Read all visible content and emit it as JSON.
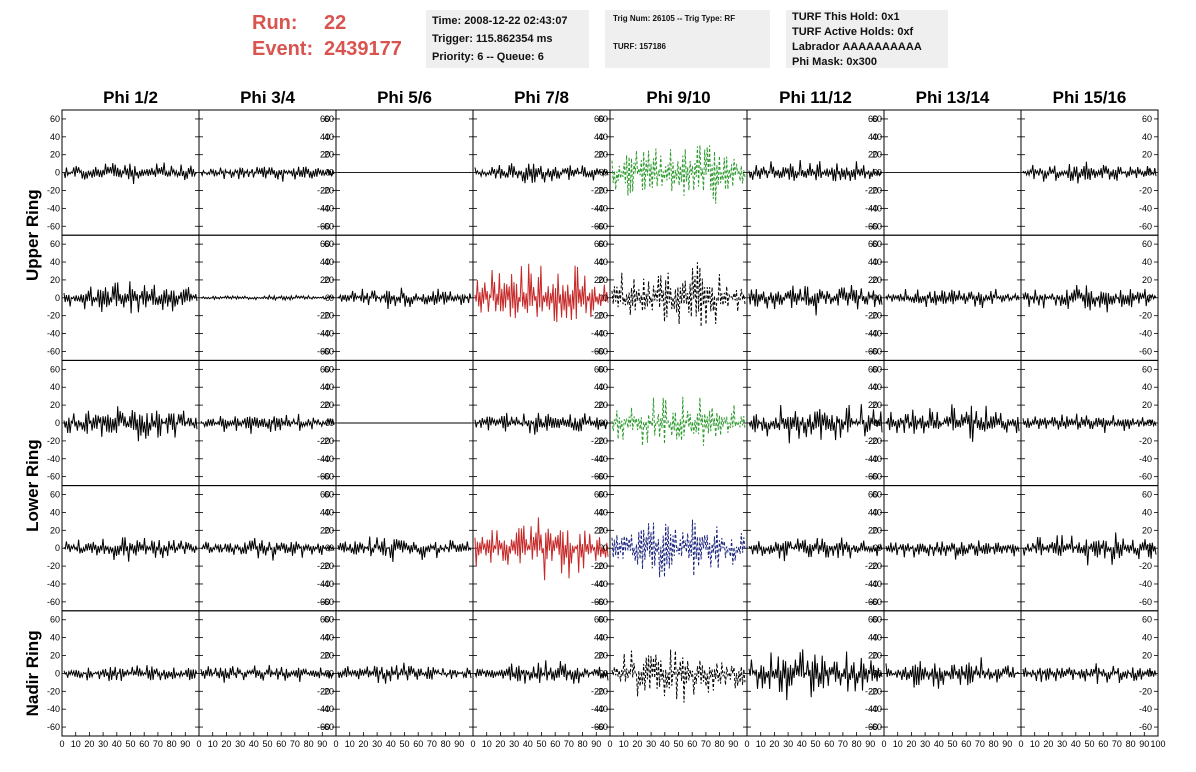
{
  "header": {
    "run_label": "Run:",
    "run_value": "22",
    "event_label": "Event:",
    "event_value": "2439177",
    "time": "Time: 2008-12-22 02:43:07",
    "trigger": "Trigger: 115.862354 ms",
    "priority": "Priority: 6 -- Queue: 6",
    "trig_num": "Trig Num: 26105 -- Trig Type: RF",
    "turf": "TURF: 157186",
    "turf_this_hold": "TURF This Hold: 0x1",
    "turf_active_holds": "TURF Active Holds: 0xf",
    "labrador": "Labrador AAAAAAAAAA",
    "phi_mask": "Phi Mask: 0x300"
  },
  "colors": {
    "header_red": "#d9534f",
    "trace_black": "#000000",
    "trace_green": "#2e9b2e",
    "trace_red": "#c62828",
    "trace_blue": "#1a237e",
    "box_bg": "#efefef"
  },
  "chart_data": {
    "type": "line",
    "columns": [
      "Phi 1/2",
      "Phi 3/4",
      "Phi 5/6",
      "Phi 7/8",
      "Phi 9/10",
      "Phi 11/12",
      "Phi 13/14",
      "Phi 15/16"
    ],
    "row_labels": [
      "Upper Ring",
      "Lower Ring",
      "Nadir Ring"
    ],
    "ylim": [
      -70,
      70
    ],
    "yticks": [
      -60,
      -40,
      -20,
      0,
      20,
      40,
      60
    ],
    "xlim": [
      0,
      100
    ],
    "xticks": [
      0,
      10,
      20,
      30,
      40,
      50,
      60,
      70,
      80,
      90,
      100
    ],
    "xtick_labels_printed": "0 10203040506070809010",
    "panels": [
      [
        {
          "color": "black",
          "style": "solid",
          "amp": 12,
          "seed": 1
        },
        {
          "color": "black",
          "style": "solid",
          "amp": 9,
          "seed": 2
        },
        {
          "color": "black",
          "style": "flat",
          "amp": 0,
          "seed": 3
        },
        {
          "color": "black",
          "style": "solid",
          "amp": 12,
          "seed": 4
        },
        {
          "color": "green",
          "style": "dashed",
          "amp": 40,
          "seed": 5
        },
        {
          "color": "black",
          "style": "solid",
          "amp": 14,
          "seed": 6
        },
        {
          "color": "black",
          "style": "flat",
          "amp": 0,
          "seed": 7
        },
        {
          "color": "black",
          "style": "solid",
          "amp": 14,
          "seed": 8
        }
      ],
      [
        {
          "color": "black",
          "style": "solid",
          "amp": 20,
          "seed": 11
        },
        {
          "color": "black",
          "style": "solid",
          "amp": 3,
          "seed": 12
        },
        {
          "color": "black",
          "style": "solid",
          "amp": 12,
          "seed": 13
        },
        {
          "color": "red",
          "style": "solid",
          "amp": 38,
          "seed": 14
        },
        {
          "color": "black",
          "style": "dashed",
          "amp": 38,
          "seed": 15
        },
        {
          "color": "black",
          "style": "solid",
          "amp": 18,
          "seed": 16
        },
        {
          "color": "black",
          "style": "solid",
          "amp": 12,
          "seed": 17
        },
        {
          "color": "black",
          "style": "solid",
          "amp": 16,
          "seed": 18
        }
      ],
      [
        {
          "color": "black",
          "style": "solid",
          "amp": 20,
          "seed": 21
        },
        {
          "color": "black",
          "style": "solid",
          "amp": 12,
          "seed": 22
        },
        {
          "color": "black",
          "style": "flat",
          "amp": 0,
          "seed": 23
        },
        {
          "color": "black",
          "style": "solid",
          "amp": 14,
          "seed": 24
        },
        {
          "color": "green",
          "style": "dashed",
          "amp": 28,
          "seed": 25
        },
        {
          "color": "black",
          "style": "solid",
          "amp": 24,
          "seed": 26
        },
        {
          "color": "black",
          "style": "solid",
          "amp": 20,
          "seed": 27
        },
        {
          "color": "black",
          "style": "solid",
          "amp": 12,
          "seed": 28
        }
      ],
      [
        {
          "color": "black",
          "style": "solid",
          "amp": 14,
          "seed": 31
        },
        {
          "color": "black",
          "style": "solid",
          "amp": 12,
          "seed": 32
        },
        {
          "color": "black",
          "style": "solid",
          "amp": 14,
          "seed": 33
        },
        {
          "color": "red",
          "style": "solid",
          "amp": 34,
          "seed": 34
        },
        {
          "color": "blue",
          "style": "dashed",
          "amp": 34,
          "seed": 35
        },
        {
          "color": "black",
          "style": "solid",
          "amp": 14,
          "seed": 36
        },
        {
          "color": "black",
          "style": "solid",
          "amp": 14,
          "seed": 37
        },
        {
          "color": "black",
          "style": "solid",
          "amp": 18,
          "seed": 38
        }
      ],
      [
        {
          "color": "black",
          "style": "solid",
          "amp": 12,
          "seed": 41
        },
        {
          "color": "black",
          "style": "solid",
          "amp": 12,
          "seed": 42
        },
        {
          "color": "black",
          "style": "solid",
          "amp": 12,
          "seed": 43
        },
        {
          "color": "black",
          "style": "solid",
          "amp": 14,
          "seed": 44
        },
        {
          "color": "black",
          "style": "dashed",
          "amp": 30,
          "seed": 45
        },
        {
          "color": "black",
          "style": "solid",
          "amp": 30,
          "seed": 46
        },
        {
          "color": "black",
          "style": "solid",
          "amp": 18,
          "seed": 47
        },
        {
          "color": "black",
          "style": "solid",
          "amp": 14,
          "seed": 48
        }
      ]
    ]
  }
}
